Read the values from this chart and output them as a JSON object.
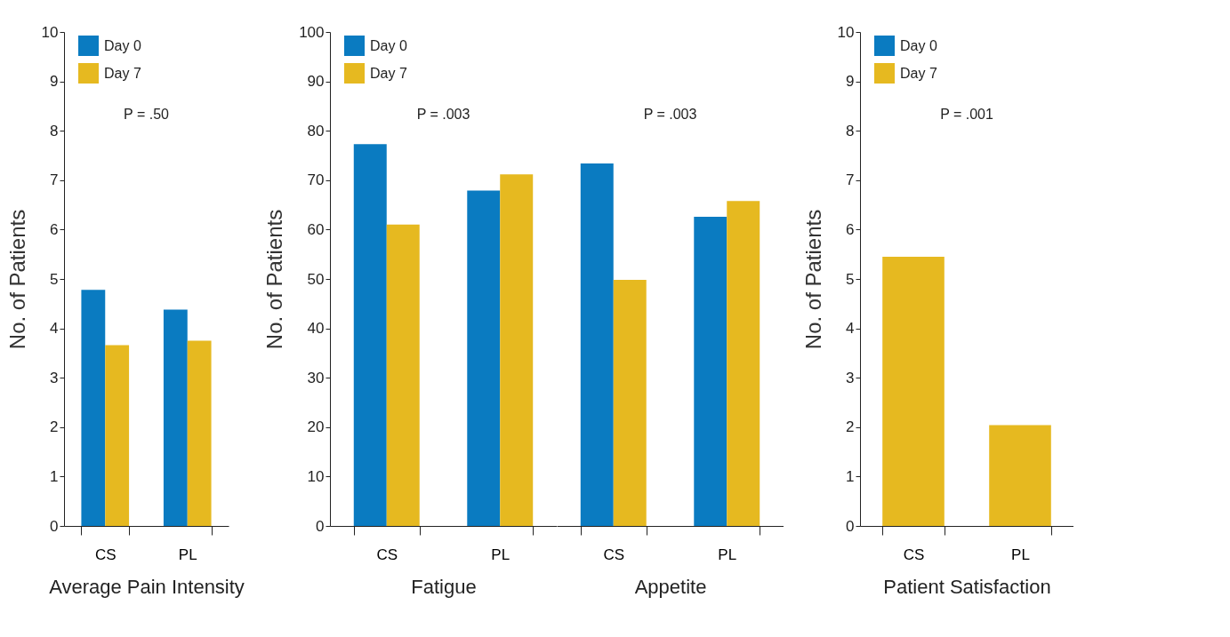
{
  "chart_data": [
    {
      "type": "bar",
      "categories": [
        "CS",
        "PL"
      ],
      "xlabel": "Average Pain Intensity",
      "ylabel": "No. of Patients",
      "ylim": [
        0,
        10
      ],
      "yticks": [
        0,
        1,
        2,
        3,
        4,
        5,
        6,
        7,
        8,
        9,
        10
      ],
      "legend": "top left",
      "annotations": [
        "P = .50"
      ],
      "series": [
        {
          "name": "Day 0",
          "color": "#0a7bc1",
          "values": [
            4.78,
            4.38
          ]
        },
        {
          "name": "Day 7",
          "color": "#e6b920",
          "values": [
            3.66,
            3.75
          ]
        }
      ]
    },
    {
      "type": "bar",
      "categories": [
        "CS",
        "PL"
      ],
      "xlabel": "Fatigue",
      "ylabel": "No. of Patients",
      "ylim": [
        0,
        100
      ],
      "yticks": [
        0,
        10,
        20,
        30,
        40,
        50,
        60,
        70,
        80,
        90,
        100
      ],
      "legend": "top left",
      "annotations": [
        "P = .003"
      ],
      "series": [
        {
          "name": "Day 0",
          "color": "#0a7bc1",
          "values": [
            77.3,
            67.9
          ]
        },
        {
          "name": "Day 7",
          "color": "#e6b920",
          "values": [
            61.0,
            71.2
          ]
        }
      ]
    },
    {
      "type": "bar",
      "categories": [
        "CS",
        "PL"
      ],
      "xlabel": "Appetite",
      "ylim": [
        0,
        100
      ],
      "tick_labels": "x",
      "annotations": [
        "P = .003"
      ],
      "series": [
        {
          "color": "#0a7bc1",
          "values": [
            73.4,
            62.6
          ]
        },
        {
          "color": "#e6b920",
          "values": [
            49.8,
            65.8
          ]
        }
      ]
    },
    {
      "type": "bar",
      "categories": [
        "CS",
        "PL"
      ],
      "xlabel": "Patient Satisfaction",
      "ylabel": "No. of Patients",
      "ylim": [
        0,
        10
      ],
      "yticks": [
        0,
        1,
        2,
        3,
        4,
        5,
        6,
        7,
        8,
        9,
        10
      ],
      "legend": "top left",
      "annotations": [
        "P = .001"
      ],
      "series": [
        {
          "name": "Day 0",
          "color": "#0a7bc1",
          "values": [
            null,
            null
          ]
        },
        {
          "name": "Day 7",
          "color": "#e6b920",
          "values": [
            5.45,
            2.04
          ]
        }
      ]
    }
  ]
}
